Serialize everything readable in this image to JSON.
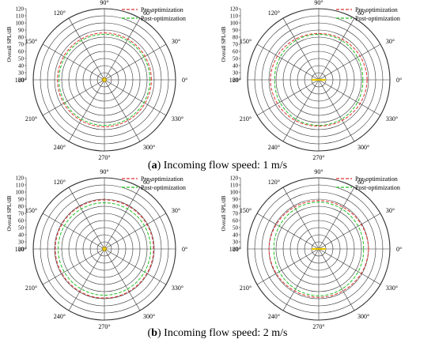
{
  "captions": {
    "a_label": "a",
    "a_text": " Incoming flow speed: 1 m/s",
    "b_label": "b",
    "b_text": " Incoming flow speed: 2 m/s"
  },
  "colors": {
    "pre": "#e03030",
    "post": "#22c022",
    "grid": "#333333",
    "marker": "#e8c400"
  },
  "chart_data": [
    {
      "type": "polar",
      "panel": "a-left",
      "ylabel": "Overall SPL/dB",
      "r_ticks": [
        20,
        30,
        40,
        50,
        60,
        70,
        80,
        90,
        100,
        110,
        120
      ],
      "r_range": [
        20,
        120
      ],
      "angle_ticks": [
        "0°",
        "30°",
        "60°",
        "90°",
        "120°",
        "150°",
        "180°",
        "210°",
        "240°",
        "270°",
        "300°",
        "330°"
      ],
      "legend": {
        "position": "top-right"
      },
      "series": [
        {
          "name": "Pre-optimization",
          "style": "dashed",
          "theta": [
            0,
            30,
            60,
            90,
            120,
            150,
            180,
            210,
            240,
            270,
            300,
            330
          ],
          "values": [
            86,
            86,
            86,
            86,
            86,
            86,
            86,
            86,
            86,
            86,
            86,
            86
          ]
        },
        {
          "name": "Post-optimization",
          "style": "dashed",
          "theta": [
            0,
            30,
            60,
            90,
            120,
            150,
            180,
            210,
            240,
            270,
            300,
            330
          ],
          "values": [
            84,
            84,
            84,
            84,
            84,
            84,
            84,
            84,
            84,
            84,
            84,
            84
          ]
        }
      ],
      "source_marker": "point"
    },
    {
      "type": "polar",
      "panel": "a-right",
      "ylabel": "Overall SPL/dB",
      "r_ticks": [
        20,
        30,
        40,
        50,
        60,
        70,
        80,
        90,
        100,
        110,
        120
      ],
      "r_range": [
        20,
        120
      ],
      "angle_ticks": [
        "0°",
        "30°",
        "60°",
        "90°",
        "120°",
        "150°",
        "180°",
        "210°",
        "240°",
        "270°",
        "300°",
        "330°"
      ],
      "legend": {
        "position": "top-right"
      },
      "series": [
        {
          "name": "Pre-optimization",
          "style": "dashed",
          "theta": [
            0,
            30,
            60,
            90,
            120,
            150,
            180,
            210,
            240,
            270,
            300,
            330
          ],
          "values": [
            88,
            87,
            86,
            85,
            86,
            87,
            88,
            87,
            86,
            85,
            86,
            87
          ]
        },
        {
          "name": "Post-optimization",
          "style": "dashed",
          "theta": [
            0,
            30,
            60,
            90,
            120,
            150,
            180,
            210,
            240,
            270,
            300,
            330
          ],
          "values": [
            82,
            83,
            84,
            84,
            84,
            83,
            82,
            83,
            84,
            84,
            84,
            83
          ]
        }
      ],
      "source_marker": "line"
    },
    {
      "type": "polar",
      "panel": "b-left",
      "ylabel": "Overall SPL/dB",
      "r_ticks": [
        20,
        30,
        40,
        50,
        60,
        70,
        80,
        90,
        100,
        110,
        120
      ],
      "r_range": [
        20,
        120
      ],
      "angle_ticks": [
        "0°",
        "30°",
        "60°",
        "90°",
        "120°",
        "150°",
        "180°",
        "210°",
        "240°",
        "270°",
        "300°",
        "330°"
      ],
      "legend": {
        "position": "top-right"
      },
      "series": [
        {
          "name": "Pre-optimization",
          "style": "dashed",
          "theta": [
            0,
            30,
            60,
            90,
            120,
            150,
            180,
            210,
            240,
            270,
            300,
            330
          ],
          "values": [
            89,
            89,
            89,
            89,
            89,
            89,
            89,
            89,
            89,
            89,
            89,
            89
          ]
        },
        {
          "name": "Post-optimization",
          "style": "dashed",
          "theta": [
            0,
            30,
            60,
            90,
            120,
            150,
            180,
            210,
            240,
            270,
            300,
            330
          ],
          "values": [
            85,
            85,
            85,
            85,
            85,
            85,
            85,
            85,
            85,
            85,
            85,
            85
          ]
        }
      ],
      "source_marker": "point"
    },
    {
      "type": "polar",
      "panel": "b-right",
      "ylabel": "Overall SPL/dB",
      "r_ticks": [
        20,
        30,
        40,
        50,
        60,
        70,
        80,
        90,
        100,
        110,
        120
      ],
      "r_range": [
        20,
        120
      ],
      "angle_ticks": [
        "0°",
        "30°",
        "60°",
        "90°",
        "120°",
        "150°",
        "180°",
        "210°",
        "240°",
        "270°",
        "300°",
        "330°"
      ],
      "legend": {
        "position": "top-right"
      },
      "series": [
        {
          "name": "Pre-optimization",
          "style": "dashed",
          "theta": [
            0,
            30,
            60,
            90,
            120,
            150,
            180,
            210,
            240,
            270,
            300,
            330
          ],
          "values": [
            90,
            89,
            88,
            88,
            88,
            89,
            90,
            89,
            88,
            88,
            88,
            89
          ]
        },
        {
          "name": "Post-optimization",
          "style": "dashed",
          "theta": [
            0,
            30,
            60,
            90,
            120,
            150,
            180,
            210,
            240,
            270,
            300,
            330
          ],
          "values": [
            83,
            84,
            85,
            86,
            85,
            84,
            83,
            84,
            85,
            86,
            85,
            84
          ]
        }
      ],
      "source_marker": "line"
    }
  ]
}
